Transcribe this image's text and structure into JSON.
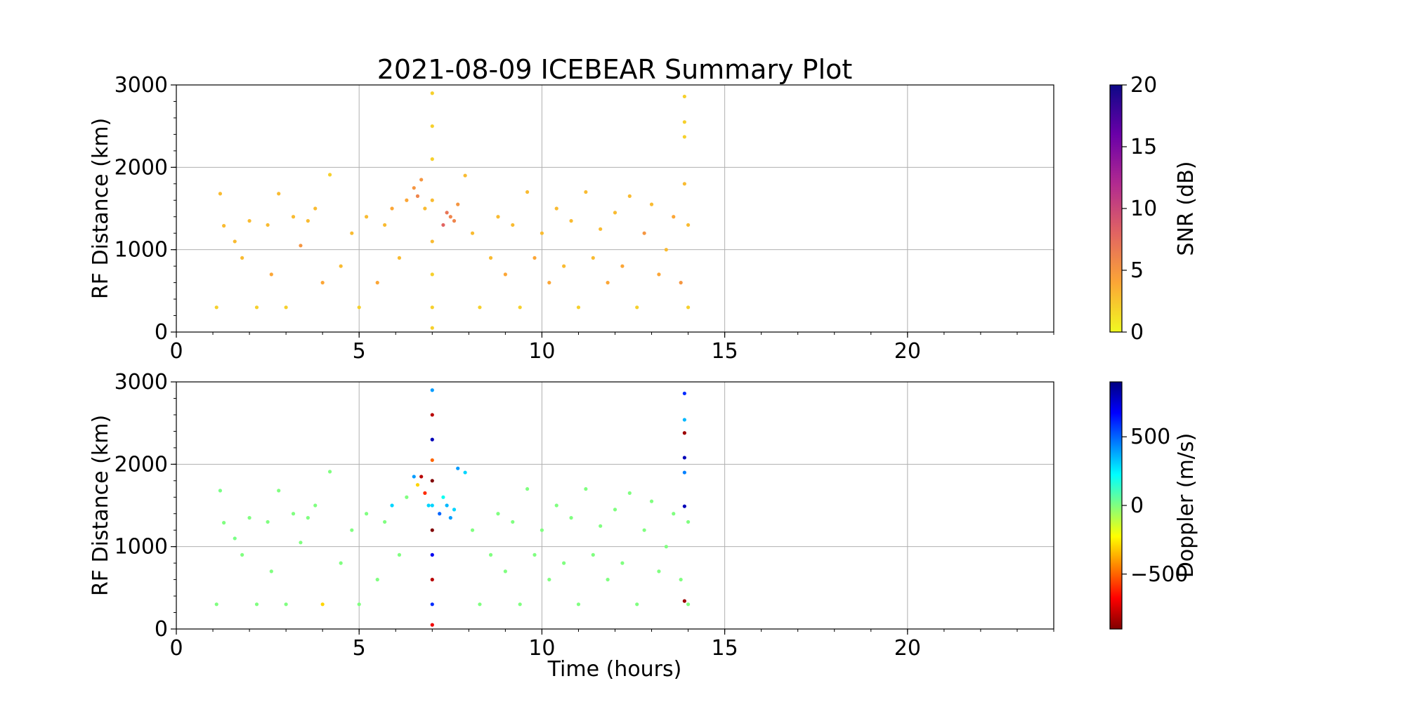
{
  "figure": {
    "title": "2021-08-09 ICEBEAR Summary Plot",
    "xlabel": "Time (hours)"
  },
  "chart_data": [
    {
      "type": "scatter",
      "ylabel": "RF Distance (km)",
      "xlim": [
        0,
        24
      ],
      "ylim": [
        0,
        3000
      ],
      "xticks": [
        0,
        5,
        10,
        15,
        20
      ],
      "yticks": [
        0,
        1000,
        2000,
        3000
      ],
      "grid": true,
      "color_variable": "SNR (dB)",
      "colorbar": {
        "label": "SNR (dB)",
        "range": [
          0,
          20
        ],
        "ticks": [
          0,
          5,
          10,
          15,
          20
        ],
        "colormap": "plasma_r",
        "colors": [
          "#f0f921",
          "#fca636",
          "#e16462",
          "#b12a90",
          "#6a00a8",
          "#0d0887"
        ]
      },
      "series": [
        {
          "values": [
            [
              1.1,
              300,
              2
            ],
            [
              1.2,
              1680,
              3
            ],
            [
              1.3,
              1290,
              3
            ],
            [
              1.6,
              1100,
              3
            ],
            [
              1.8,
              900,
              3
            ],
            [
              2.0,
              1350,
              3
            ],
            [
              2.2,
              300,
              2
            ],
            [
              2.5,
              1300,
              3
            ],
            [
              2.6,
              700,
              4
            ],
            [
              2.8,
              1680,
              3
            ],
            [
              3.0,
              300,
              2
            ],
            [
              3.2,
              1400,
              3
            ],
            [
              3.4,
              1050,
              5
            ],
            [
              3.6,
              1350,
              3
            ],
            [
              3.8,
              1500,
              3
            ],
            [
              4.0,
              600,
              4
            ],
            [
              4.2,
              1910,
              2
            ],
            [
              4.5,
              800,
              3
            ],
            [
              4.8,
              1200,
              3
            ],
            [
              5.0,
              300,
              2
            ],
            [
              5.2,
              1400,
              3
            ],
            [
              5.5,
              600,
              4
            ],
            [
              5.7,
              1300,
              3
            ],
            [
              5.9,
              1500,
              4
            ],
            [
              6.1,
              900,
              3
            ],
            [
              6.3,
              1600,
              4
            ],
            [
              6.5,
              1750,
              5
            ],
            [
              6.6,
              1650,
              6
            ],
            [
              6.7,
              1850,
              5
            ],
            [
              6.8,
              1500,
              3
            ],
            [
              7.0,
              2900,
              2
            ],
            [
              7.0,
              2500,
              2
            ],
            [
              7.0,
              2100,
              2
            ],
            [
              7.0,
              1600,
              3
            ],
            [
              7.0,
              1100,
              3
            ],
            [
              7.0,
              700,
              2
            ],
            [
              7.0,
              300,
              2
            ],
            [
              7.0,
              50,
              2
            ],
            [
              7.3,
              1300,
              8
            ],
            [
              7.4,
              1450,
              7
            ],
            [
              7.5,
              1400,
              6
            ],
            [
              7.6,
              1350,
              6
            ],
            [
              7.7,
              1550,
              5
            ],
            [
              7.9,
              1900,
              3
            ],
            [
              8.1,
              1200,
              3
            ],
            [
              8.3,
              300,
              2
            ],
            [
              8.6,
              900,
              3
            ],
            [
              8.8,
              1400,
              3
            ],
            [
              9.0,
              700,
              4
            ],
            [
              9.2,
              1300,
              3
            ],
            [
              9.4,
              300,
              2
            ],
            [
              9.6,
              1700,
              3
            ],
            [
              9.8,
              900,
              4
            ],
            [
              10.0,
              1200,
              3
            ],
            [
              10.2,
              600,
              4
            ],
            [
              10.4,
              1500,
              3
            ],
            [
              10.6,
              800,
              3
            ],
            [
              10.8,
              1350,
              3
            ],
            [
              11.0,
              300,
              2
            ],
            [
              11.2,
              1700,
              3
            ],
            [
              11.4,
              900,
              3
            ],
            [
              11.6,
              1250,
              3
            ],
            [
              11.8,
              600,
              4
            ],
            [
              12.0,
              1450,
              3
            ],
            [
              12.2,
              800,
              4
            ],
            [
              12.4,
              1650,
              3
            ],
            [
              12.6,
              300,
              2
            ],
            [
              12.8,
              1200,
              5
            ],
            [
              13.0,
              1550,
              3
            ],
            [
              13.2,
              700,
              4
            ],
            [
              13.4,
              1000,
              3
            ],
            [
              13.6,
              1400,
              4
            ],
            [
              13.8,
              600,
              5
            ],
            [
              13.9,
              2860,
              2
            ],
            [
              13.9,
              2550,
              2
            ],
            [
              13.9,
              2370,
              2
            ],
            [
              13.9,
              1800,
              3
            ],
            [
              14.0,
              1300,
              3
            ],
            [
              14.0,
              300,
              2
            ]
          ]
        }
      ]
    },
    {
      "type": "scatter",
      "ylabel": "RF Distance (km)",
      "xlim": [
        0,
        24
      ],
      "ylim": [
        0,
        3000
      ],
      "xticks": [
        0,
        5,
        10,
        15,
        20
      ],
      "yticks": [
        0,
        1000,
        2000,
        3000
      ],
      "grid": true,
      "color_variable": "Doppler (m/s)",
      "colorbar": {
        "label": "Doppler (m/s)",
        "range": [
          -900,
          900
        ],
        "ticks": [
          -500,
          0,
          500
        ],
        "colormap": "jet_r",
        "colors": [
          "#800000",
          "#ff0000",
          "#ff8000",
          "#ffff00",
          "#80ff80",
          "#00ffff",
          "#0080ff",
          "#0000ff",
          "#000080"
        ]
      },
      "series": [
        {
          "values": [
            [
              1.1,
              300,
              0
            ],
            [
              1.2,
              1680,
              10
            ],
            [
              1.3,
              1290,
              0
            ],
            [
              1.6,
              1100,
              10
            ],
            [
              1.8,
              900,
              0
            ],
            [
              2.0,
              1350,
              0
            ],
            [
              2.2,
              300,
              0
            ],
            [
              2.5,
              1300,
              0
            ],
            [
              2.6,
              700,
              0
            ],
            [
              2.8,
              1680,
              0
            ],
            [
              3.0,
              300,
              0
            ],
            [
              3.2,
              1400,
              0
            ],
            [
              3.4,
              1050,
              0
            ],
            [
              3.6,
              1350,
              0
            ],
            [
              3.8,
              1500,
              0
            ],
            [
              4.0,
              300,
              -300
            ],
            [
              4.2,
              1910,
              0
            ],
            [
              4.5,
              800,
              0
            ],
            [
              4.8,
              1200,
              0
            ],
            [
              5.0,
              300,
              0
            ],
            [
              5.2,
              1400,
              0
            ],
            [
              5.5,
              600,
              0
            ],
            [
              5.7,
              1300,
              0
            ],
            [
              5.9,
              1500,
              300
            ],
            [
              6.1,
              900,
              0
            ],
            [
              6.3,
              1600,
              0
            ],
            [
              6.5,
              1850,
              400
            ],
            [
              6.6,
              1750,
              -300
            ],
            [
              6.7,
              1850,
              -800
            ],
            [
              6.8,
              1650,
              -600
            ],
            [
              6.9,
              1500,
              300
            ],
            [
              7.0,
              2900,
              400
            ],
            [
              7.0,
              2600,
              -800
            ],
            [
              7.0,
              2300,
              800
            ],
            [
              7.0,
              2050,
              -500
            ],
            [
              7.0,
              1800,
              -900
            ],
            [
              7.0,
              1500,
              300
            ],
            [
              7.0,
              1200,
              -900
            ],
            [
              7.0,
              900,
              700
            ],
            [
              7.0,
              600,
              -800
            ],
            [
              7.0,
              300,
              600
            ],
            [
              7.0,
              50,
              -700
            ],
            [
              7.2,
              1400,
              500
            ],
            [
              7.3,
              1600,
              200
            ],
            [
              7.4,
              1500,
              350
            ],
            [
              7.5,
              1350,
              400
            ],
            [
              7.6,
              1450,
              300
            ],
            [
              7.7,
              1950,
              400
            ],
            [
              7.9,
              1900,
              300
            ],
            [
              8.1,
              1200,
              0
            ],
            [
              8.3,
              300,
              0
            ],
            [
              8.6,
              900,
              0
            ],
            [
              8.8,
              1400,
              0
            ],
            [
              9.0,
              700,
              0
            ],
            [
              9.2,
              1300,
              0
            ],
            [
              9.4,
              300,
              0
            ],
            [
              9.6,
              1700,
              0
            ],
            [
              9.8,
              900,
              0
            ],
            [
              10.0,
              1200,
              0
            ],
            [
              10.2,
              600,
              0
            ],
            [
              10.4,
              1500,
              0
            ],
            [
              10.6,
              800,
              0
            ],
            [
              10.8,
              1350,
              0
            ],
            [
              11.0,
              300,
              0
            ],
            [
              11.2,
              1700,
              0
            ],
            [
              11.4,
              900,
              0
            ],
            [
              11.6,
              1250,
              0
            ],
            [
              11.8,
              600,
              0
            ],
            [
              12.0,
              1450,
              0
            ],
            [
              12.2,
              800,
              0
            ],
            [
              12.4,
              1650,
              0
            ],
            [
              12.6,
              300,
              0
            ],
            [
              12.8,
              1200,
              0
            ],
            [
              13.0,
              1550,
              0
            ],
            [
              13.2,
              700,
              0
            ],
            [
              13.4,
              1000,
              0
            ],
            [
              13.6,
              1400,
              0
            ],
            [
              13.8,
              600,
              0
            ],
            [
              13.9,
              2860,
              600
            ],
            [
              13.9,
              2540,
              350
            ],
            [
              13.9,
              2380,
              -850
            ],
            [
              13.9,
              2080,
              800
            ],
            [
              13.9,
              1900,
              450
            ],
            [
              13.9,
              1490,
              800
            ],
            [
              13.9,
              340,
              -850
            ],
            [
              14.0,
              1300,
              0
            ],
            [
              14.0,
              300,
              0
            ]
          ]
        }
      ]
    }
  ]
}
